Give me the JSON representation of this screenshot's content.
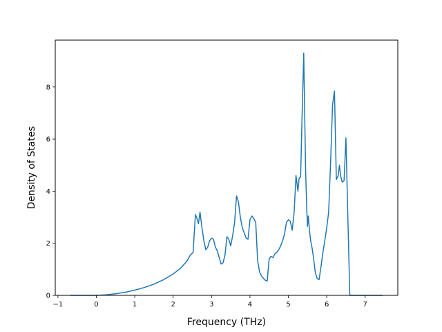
{
  "chart_data": {
    "type": "line",
    "title": "",
    "xlabel": "Frequency (THz)",
    "ylabel": "Density of States",
    "xlim": [
      -1.07,
      7.85
    ],
    "ylim": [
      0,
      9.8
    ],
    "xticks": [
      -1,
      0,
      1,
      2,
      3,
      4,
      5,
      6,
      7
    ],
    "xtick_labels": [
      "−1",
      "0",
      "1",
      "2",
      "3",
      "4",
      "5",
      "6",
      "7"
    ],
    "yticks": [
      0,
      2,
      4,
      6,
      8
    ],
    "ytick_labels": [
      "0",
      "2",
      "4",
      "6",
      "8"
    ],
    "grid": false,
    "legend": "none",
    "line_color": "#1f77b4",
    "series": [
      {
        "x": [
          -0.68,
          -0.5,
          -0.3,
          -0.1,
          0.0,
          0.25,
          0.5,
          0.75,
          1.0,
          1.25,
          1.5,
          1.75,
          2.0,
          2.2,
          2.35,
          2.45,
          2.52,
          2.55,
          2.58,
          2.62,
          2.66,
          2.7,
          2.75,
          2.8,
          2.85,
          2.9,
          2.95,
          3.0,
          3.05,
          3.1,
          3.15,
          3.2,
          3.25,
          3.3,
          3.35,
          3.4,
          3.45,
          3.5,
          3.55,
          3.6,
          3.65,
          3.7,
          3.75,
          3.8,
          3.85,
          3.9,
          3.95,
          4.0,
          4.05,
          4.1,
          4.15,
          4.2,
          4.25,
          4.3,
          4.35,
          4.4,
          4.45,
          4.5,
          4.55,
          4.6,
          4.65,
          4.7,
          4.75,
          4.8,
          4.85,
          4.9,
          4.95,
          5.0,
          5.05,
          5.1,
          5.15,
          5.2,
          5.25,
          5.28,
          5.32,
          5.36,
          5.4,
          5.45,
          5.48,
          5.5,
          5.52,
          5.55,
          5.58,
          5.62,
          5.66,
          5.7,
          5.75,
          5.8,
          5.85,
          5.9,
          5.95,
          6.0,
          6.05,
          6.1,
          6.15,
          6.2,
          6.25,
          6.3,
          6.33,
          6.36,
          6.4,
          6.45,
          6.5,
          6.55,
          6.6,
          6.65,
          6.7,
          6.72,
          6.74,
          6.76,
          6.8,
          7.0,
          7.2,
          7.45
        ],
        "y": [
          0,
          0,
          0,
          0,
          0,
          0.02,
          0.06,
          0.12,
          0.2,
          0.3,
          0.43,
          0.6,
          0.82,
          1.05,
          1.3,
          1.55,
          1.65,
          2.4,
          3.1,
          2.95,
          2.75,
          3.2,
          2.6,
          2.1,
          1.75,
          1.85,
          2.1,
          2.2,
          2.15,
          1.85,
          1.7,
          1.45,
          1.2,
          1.25,
          1.55,
          2.25,
          2.15,
          1.9,
          2.3,
          2.8,
          3.82,
          3.6,
          3.0,
          2.6,
          2.4,
          2.2,
          2.15,
          2.9,
          3.05,
          2.95,
          2.8,
          1.35,
          0.9,
          0.75,
          0.65,
          0.58,
          0.55,
          1.4,
          1.5,
          1.45,
          1.6,
          1.65,
          1.75,
          1.9,
          2.1,
          2.35,
          2.8,
          2.9,
          2.85,
          2.5,
          3.2,
          4.6,
          4.0,
          4.5,
          4.55,
          7.0,
          9.3,
          4.8,
          3.3,
          2.65,
          3.05,
          2.5,
          2.1,
          1.8,
          1.4,
          0.9,
          0.65,
          0.6,
          1.1,
          1.65,
          2.1,
          2.6,
          3.2,
          5.1,
          7.3,
          7.85,
          4.45,
          4.6,
          5.0,
          4.6,
          4.35,
          4.4,
          6.05,
          3.0,
          0.0,
          0.0,
          0,
          0,
          0,
          0,
          0,
          0,
          0,
          0
        ]
      }
    ]
  }
}
